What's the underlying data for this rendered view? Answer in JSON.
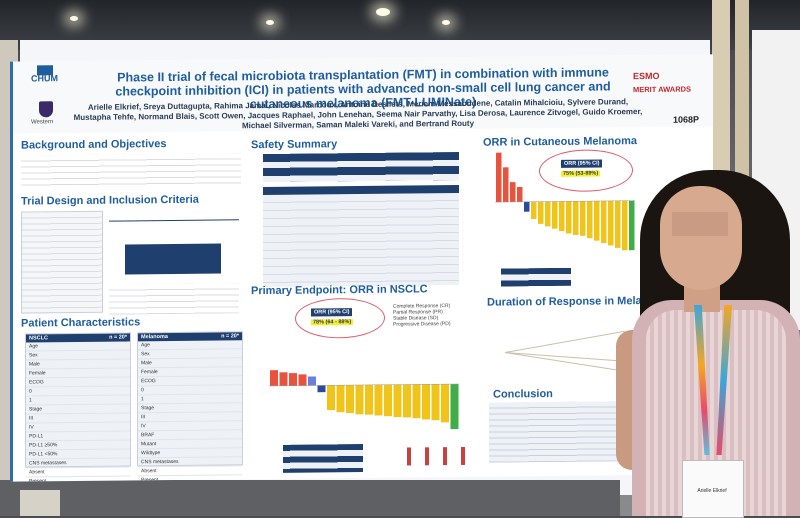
{
  "poster": {
    "title": "Phase II trial of fecal microbiota transplantation (FMT) in combination with immune checkpoint inhibition (ICI) in patients with advanced non-small cell lung cancer and cutaneous melanoma (FMT-LUMINate)",
    "authors": "Arielle Elkrief, Sreya Duttagupta, Rahima Jamal, Nicolas Marcoux, Antoine Desilets, Meriem Messaoudene, Catalin Mihalcioiu, Sylvere Durand, Mustapha Tehfe, Normand Blais, Scott Owen, Jacques Raphael, John Lenehan, Seema Nair Parvathy, Lisa Derosa, Laurence Zitvogel, Guido Kroemer, Michael Silverman, Saman Maleki Vareki, and Bertrand Routy",
    "poster_code": "1068P",
    "logos": {
      "left_top": "CHUM",
      "left_bottom": "Western",
      "right_top": "ESMO",
      "right_award": "MERIT AWARDS"
    },
    "sections": {
      "background": "Background and Objectives",
      "trial_design": "Trial Design and Inclusion Criteria",
      "patient_chars": "Patient Characteristics",
      "safety": "Safety Summary",
      "primary": "Primary Endpoint: ORR in NSCLC",
      "orr_melanoma": "ORR in Cutaneous Melanoma",
      "duration": "Duration of Response in Melanoma",
      "conclusion": "Conclusion"
    },
    "callouts": {
      "nsclc_header": "ORR (95% CI)",
      "nsclc_value": "78% (64 - 88%)",
      "melanoma_header": "ORR (95% CI)",
      "melanoma_value": "75% (53-89%)"
    },
    "legend": [
      "Complete Response (CR)",
      "Partial Response (PR)",
      "Stable Disease (SD)",
      "Progressive Disease (PD)"
    ],
    "tables": {
      "nsclc_header": "NSCLC",
      "nsclc_n": "n = 20*",
      "melanoma_header": "Melanoma",
      "melanoma_n": "n = 20*",
      "rows_nsclc": [
        "Age",
        "Sex",
        "Male",
        "Female",
        "ECOG",
        "0",
        "1",
        "Stage",
        "III",
        "IV",
        "PD-L1",
        "PD-L1 ≥50%",
        "PD-L1 <50%",
        "CNS metastases",
        "Absent",
        "Present"
      ],
      "rows_melanoma": [
        "Age",
        "Sex",
        "Male",
        "Female",
        "ECOG",
        "0",
        "1",
        "Stage",
        "III",
        "IV",
        "BRAF",
        "Mutant",
        "Wildtype",
        "CNS metastases",
        "Absent",
        "Present"
      ]
    }
  },
  "chart_data": [
    {
      "type": "bar",
      "title": "Primary Endpoint: ORR in NSCLC",
      "series": [
        {
          "name": "waterfall",
          "values": [
            0.35,
            0.3,
            0.28,
            0.25,
            0.2,
            -0.15,
            -0.55,
            -0.6,
            -0.62,
            -0.65,
            -0.66,
            -0.68,
            -0.7,
            -0.72,
            -0.73,
            -0.75,
            -0.78,
            -0.8,
            -0.85,
            -1.0
          ]
        }
      ]
    },
    {
      "type": "bar",
      "title": "ORR in Cutaneous Melanoma",
      "series": [
        {
          "name": "waterfall",
          "values": [
            1.0,
            0.7,
            0.4,
            0.3,
            -0.2,
            -0.35,
            -0.45,
            -0.5,
            -0.55,
            -0.6,
            -0.65,
            -0.68,
            -0.7,
            -0.75,
            -0.8,
            -0.85,
            -0.9,
            -0.95,
            -1.0,
            -1.0
          ]
        }
      ]
    }
  ],
  "badge": {
    "name": "Arielle Elkrief"
  }
}
